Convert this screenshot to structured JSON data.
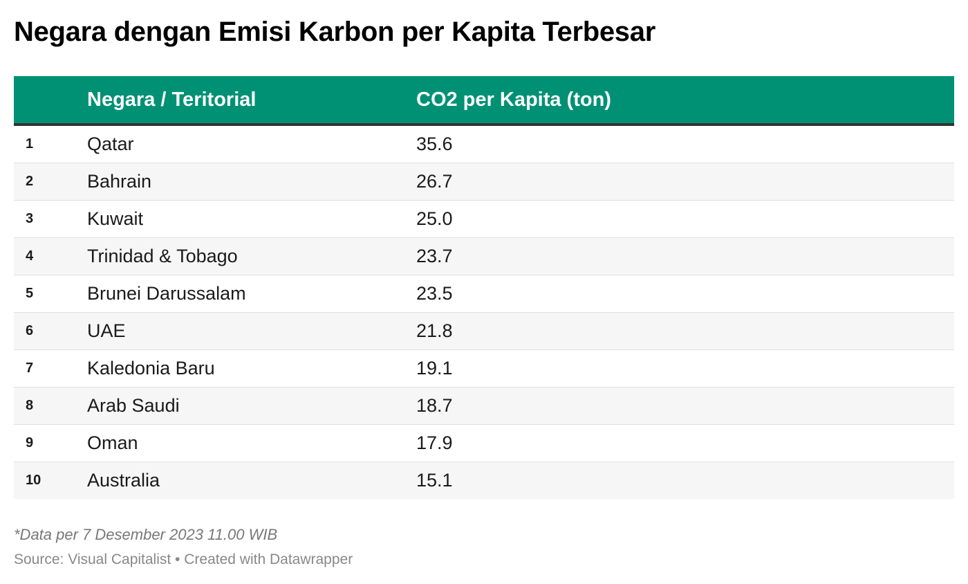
{
  "title": "Negara dengan Emisi Karbon per Kapita Terbesar",
  "colors": {
    "header_bg": "#009174",
    "header_text": "#ffffff",
    "header_border": "#333333",
    "row_alt_bg": "#f6f6f6"
  },
  "columns": {
    "rank": "",
    "country": "Negara / Teritorial",
    "value": "CO2 per Kapita (ton)"
  },
  "chart_data": {
    "type": "table",
    "title": "Negara dengan Emisi Karbon per Kapita Terbesar",
    "columns": [
      "",
      "Negara / Teritorial",
      "CO2 per Kapita (ton)"
    ],
    "rows": [
      {
        "rank": "1",
        "country": "Qatar",
        "value": "35.6"
      },
      {
        "rank": "2",
        "country": "Bahrain",
        "value": "26.7"
      },
      {
        "rank": "3",
        "country": "Kuwait",
        "value": "25.0"
      },
      {
        "rank": "4",
        "country": "Trinidad & Tobago",
        "value": "23.7"
      },
      {
        "rank": "5",
        "country": "Brunei Darussalam",
        "value": "23.5"
      },
      {
        "rank": "6",
        "country": "UAE",
        "value": "21.8"
      },
      {
        "rank": "7",
        "country": "Kaledonia Baru",
        "value": "19.1"
      },
      {
        "rank": "8",
        "country": "Arab Saudi",
        "value": "18.7"
      },
      {
        "rank": "9",
        "country": "Oman",
        "value": "17.9"
      },
      {
        "rank": "10",
        "country": "Australia",
        "value": "15.1"
      }
    ]
  },
  "footer": {
    "note": "*Data per 7 Desember 2023 11.00 WIB",
    "source": "Source: Visual Capitalist • Created with Datawrapper"
  }
}
